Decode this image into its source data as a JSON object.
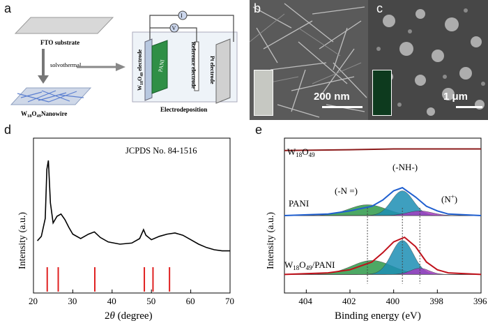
{
  "panel_a": {
    "letter": "a",
    "substrate_label": "FTO substrate",
    "process_label": "solvothermal",
    "nanowire_label": "Nanowire",
    "electrode_label_left": "W18O49 electrode",
    "pani_label": "PANI",
    "reference_label": "Reference electrode",
    "pt_label": "Pt electrode",
    "voltmeter": "V",
    "ammeter": "I",
    "caption": "Electrodeposition"
  },
  "panel_b": {
    "letter": "b",
    "scale": "200 nm"
  },
  "panel_c": {
    "letter": "c",
    "scale": "1 μm"
  },
  "panel_d": {
    "letter": "d",
    "note": "JCPDS No. 84-1516",
    "ylabel": "Intensity (a.u.)",
    "xlabel_tail": "(degree)"
  },
  "panel_e": {
    "letter": "e",
    "ylabel": "Intensity (a.u.)",
    "xlabel": "Binding energy (eV)",
    "peak_n_eq": "(-N =)",
    "peak_nh": "(-NH-)",
    "peak_nplus": "(N",
    "pani": "PANI"
  },
  "colors": {
    "xrd_line": "#000000",
    "jcpds_marks": "#e02020",
    "w18o49_line": "#8b1a1a",
    "fit_blue": "#1f5fd0",
    "fit_green": "#2e9a4a",
    "fit_red": "#c0101a"
  },
  "chart_data": [
    {
      "type": "line",
      "panel": "d",
      "xlabel": "2θ (degree)",
      "ylabel": "Intensity (a.u.)",
      "xlim": [
        20,
        70
      ],
      "xticks": [
        20,
        30,
        40,
        50,
        60,
        70
      ],
      "annotation": "JCPDS No. 84-1516",
      "series": [
        {
          "x": [
            21,
            22,
            23,
            23.4,
            23.8,
            24.3,
            25,
            26,
            27,
            28,
            29,
            30,
            32,
            34,
            35.5,
            37,
            39,
            42,
            45,
            47,
            48,
            48.6,
            50,
            52,
            54,
            56,
            58,
            60,
            62,
            64,
            66,
            68,
            70
          ],
          "y": [
            0.28,
            0.32,
            0.48,
            0.92,
            1.0,
            0.62,
            0.44,
            0.5,
            0.52,
            0.47,
            0.4,
            0.34,
            0.3,
            0.34,
            0.36,
            0.31,
            0.27,
            0.25,
            0.26,
            0.3,
            0.38,
            0.33,
            0.29,
            0.32,
            0.34,
            0.35,
            0.33,
            0.29,
            0.25,
            0.22,
            0.2,
            0.19,
            0.19
          ]
        }
      ],
      "reference_peaks_x": [
        23.5,
        26.3,
        35.6,
        48.2,
        50.4,
        54.6
      ]
    },
    {
      "type": "line",
      "panel": "e",
      "xlabel": "Binding energy (eV)",
      "ylabel": "Intensity (a.u.)",
      "xlim": [
        405,
        396
      ],
      "xticks": [
        404,
        402,
        400,
        398,
        396
      ],
      "series": [
        {
          "name": "W18O49",
          "x": [
            405,
            402,
            400,
            398,
            396
          ],
          "y": [
            0.92,
            0.925,
            0.93,
            0.93,
            0.93
          ]
        },
        {
          "name": "PANI",
          "x": [
            405,
            403,
            402,
            401,
            400.5,
            400,
            399.6,
            399,
            398.5,
            398,
            397.5,
            396
          ],
          "y": [
            0.5,
            0.51,
            0.53,
            0.56,
            0.6,
            0.66,
            0.68,
            0.62,
            0.56,
            0.53,
            0.51,
            0.5
          ]
        },
        {
          "name": "W18O49/PANI",
          "x": [
            405,
            403,
            402,
            401,
            400.5,
            400,
            399.5,
            399,
            398.5,
            398,
            397.5,
            396
          ],
          "y": [
            0.12,
            0.13,
            0.15,
            0.2,
            0.26,
            0.33,
            0.36,
            0.3,
            0.2,
            0.15,
            0.13,
            0.12
          ]
        }
      ],
      "reference_lines_x": [
        401.2,
        399.6,
        398.8
      ]
    }
  ]
}
